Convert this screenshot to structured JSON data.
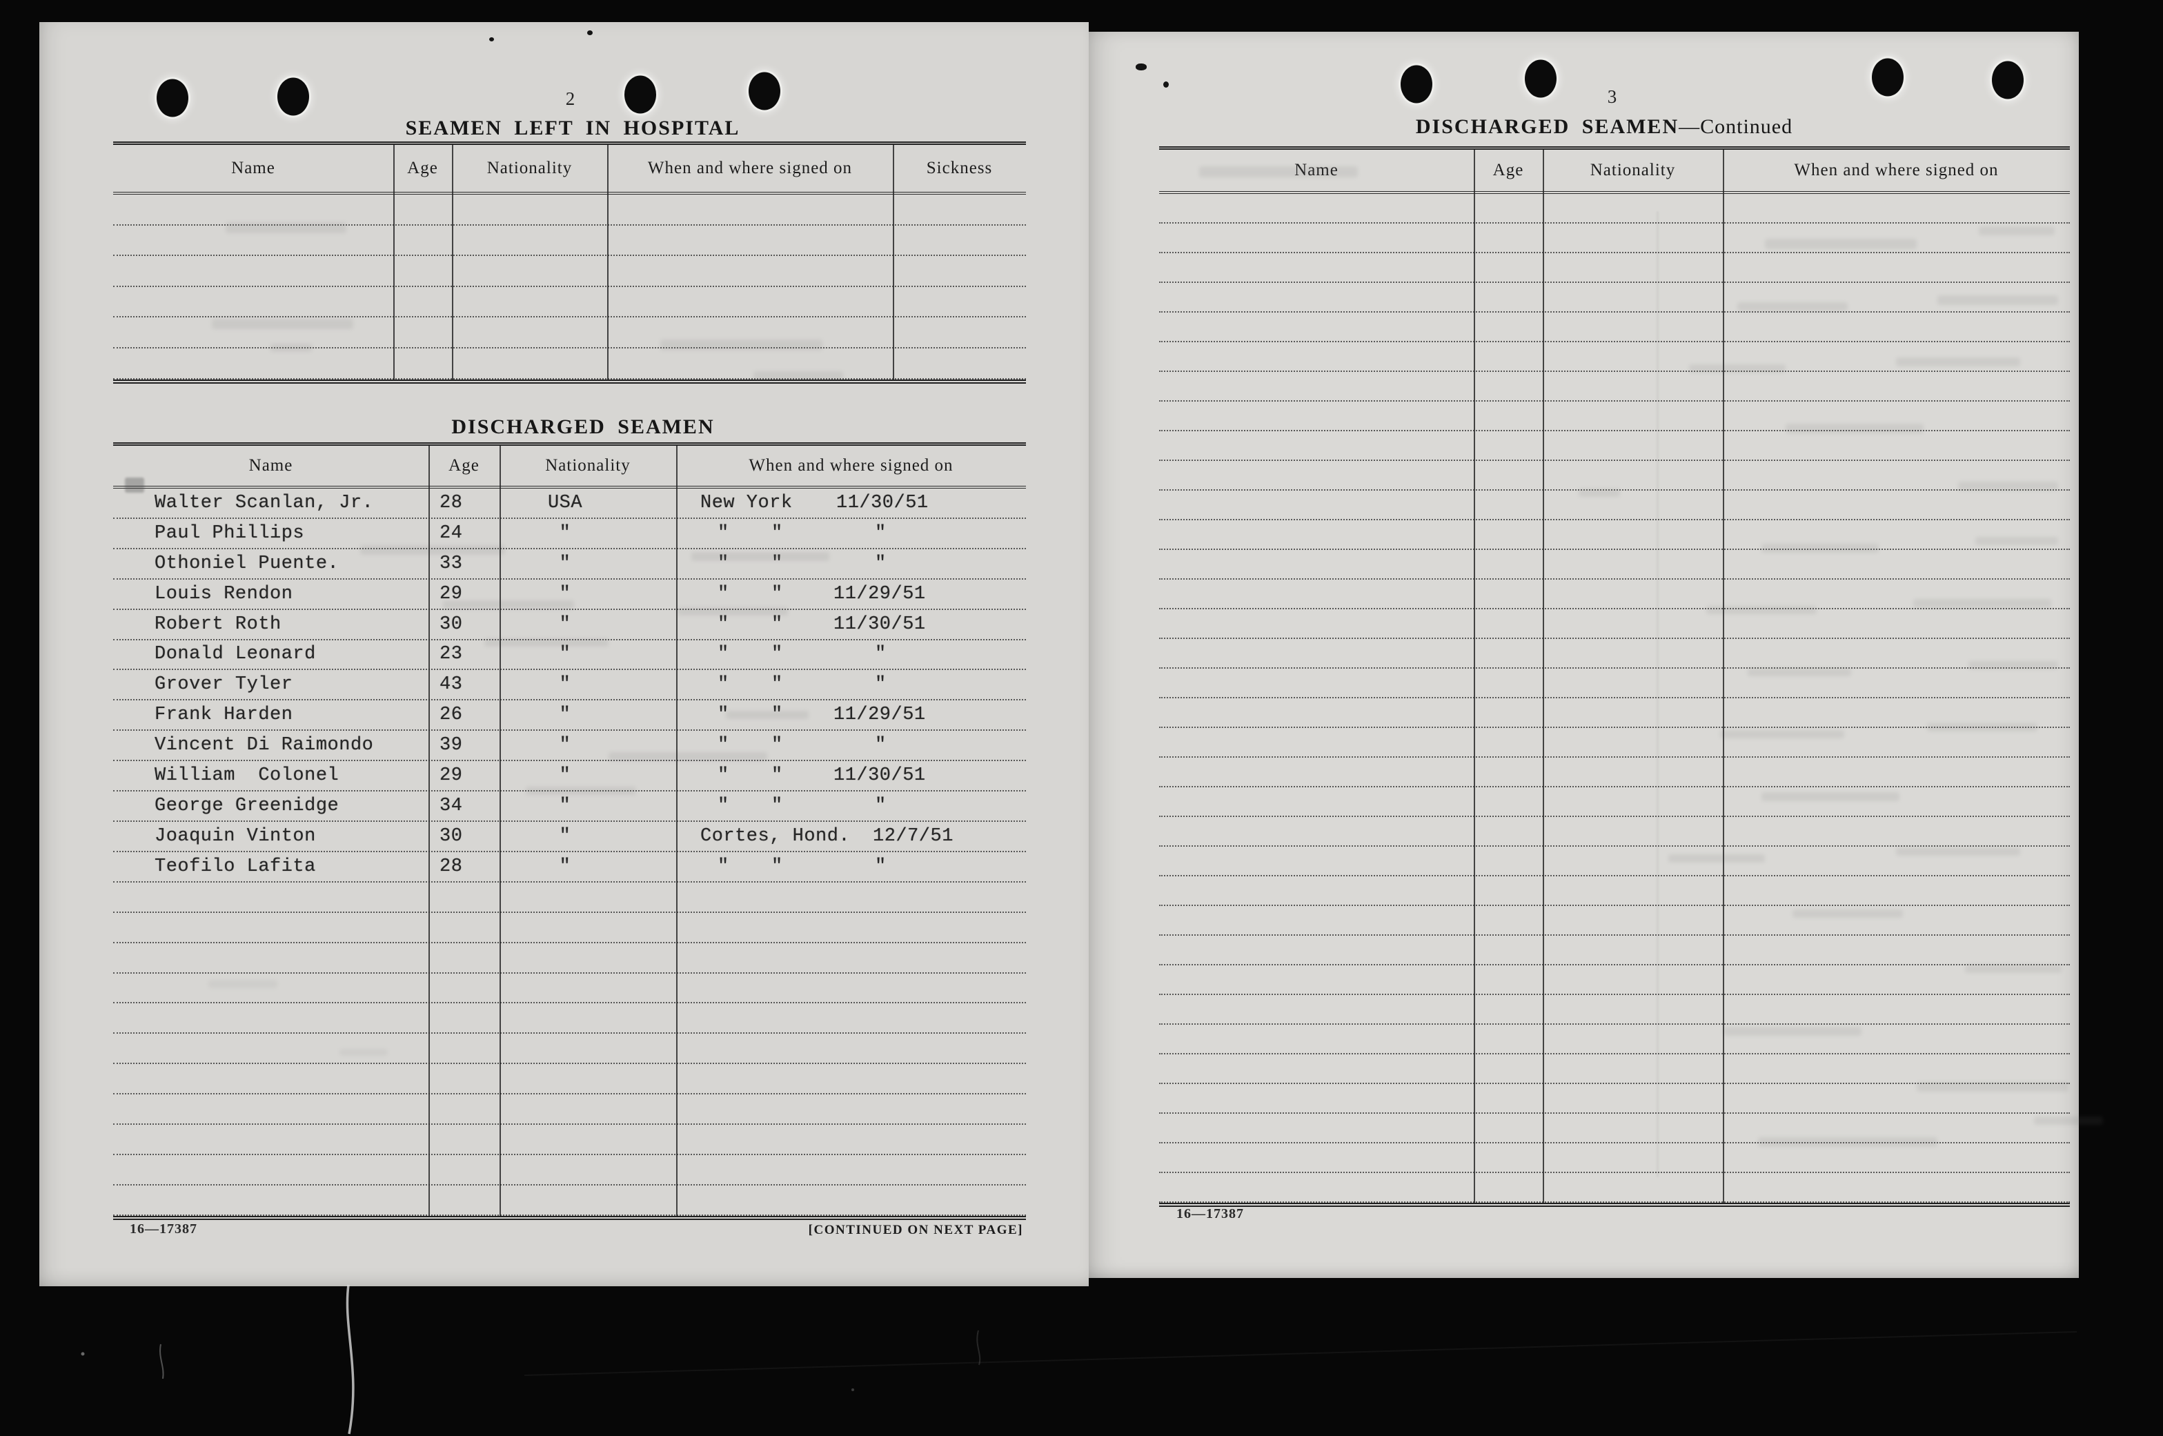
{
  "document": {
    "left_page": {
      "page_number": "2",
      "hospital_section": {
        "title": "SEAMEN LEFT IN HOSPITAL",
        "columns": [
          "Name",
          "Age",
          "Nationality",
          "When and where signed on",
          "Sickness"
        ],
        "empty_row_count": 6
      },
      "discharged_section": {
        "title": "DISCHARGED SEAMEN",
        "columns": [
          "Name",
          "Age",
          "Nationality",
          "When and where signed on"
        ],
        "rows": [
          {
            "name": "Walter Scanlan, Jr.",
            "age": "28",
            "nationality": "USA",
            "signed_on": [
              "New York",
              "11/30/51"
            ]
          },
          {
            "name": "Paul Phillips",
            "age": "24",
            "nationality": "\"",
            "signed_on": [
              "\"",
              "\"",
              "\""
            ]
          },
          {
            "name": "Othoniel Puente.",
            "age": "33",
            "nationality": "\"",
            "signed_on": [
              "\"",
              "\"",
              "\""
            ]
          },
          {
            "name": "Louis Rendon",
            "age": "29",
            "nationality": "\"",
            "signed_on": [
              "\"",
              "\"",
              "11/29/51"
            ]
          },
          {
            "name": "Robert Roth",
            "age": "30",
            "nationality": "\"",
            "signed_on": [
              "\"",
              "\"",
              "11/30/51"
            ]
          },
          {
            "name": "Donald Leonard",
            "age": "23",
            "nationality": "\"",
            "signed_on": [
              "\"",
              "\"",
              "\""
            ]
          },
          {
            "name": "Grover Tyler",
            "age": "43",
            "nationality": "\"",
            "signed_on": [
              "\"",
              "\"",
              "\""
            ]
          },
          {
            "name": "Frank Harden",
            "age": "26",
            "nationality": "\"",
            "signed_on": [
              "\"",
              "\"",
              "11/29/51"
            ]
          },
          {
            "name": "Vincent Di Raimondo",
            "age": "39",
            "nationality": "\"",
            "signed_on": [
              "\"",
              "\"",
              "\""
            ]
          },
          {
            "name": "William  Colonel",
            "age": "29",
            "nationality": "\"",
            "signed_on": [
              "\"",
              "\"",
              "11/30/51"
            ]
          },
          {
            "name": "George Greenidge",
            "age": "34",
            "nationality": "\"",
            "signed_on": [
              "\"",
              "\"",
              "\""
            ]
          },
          {
            "name": "Joaquin Vinton",
            "age": "30",
            "nationality": "\"",
            "signed_on": [
              "Cortes, Hond.",
              "12/7/51"
            ]
          },
          {
            "name": "Teofilo Lafita",
            "age": "28",
            "nationality": "\"",
            "signed_on": [
              "\"",
              "\"",
              "\""
            ]
          }
        ],
        "empty_row_count": 11
      },
      "footer": {
        "form_number": "16—17387",
        "continued_note": "[CONTINUED ON NEXT PAGE]"
      }
    },
    "right_page": {
      "page_number": "3",
      "title_bold": "DISCHARGED SEAMEN",
      "title_suffix": "—Continued",
      "columns": [
        "Name",
        "Age",
        "Nationality",
        "When and where signed on"
      ],
      "empty_row_count": 34,
      "footer": {
        "form_number": "16—17387"
      }
    }
  }
}
